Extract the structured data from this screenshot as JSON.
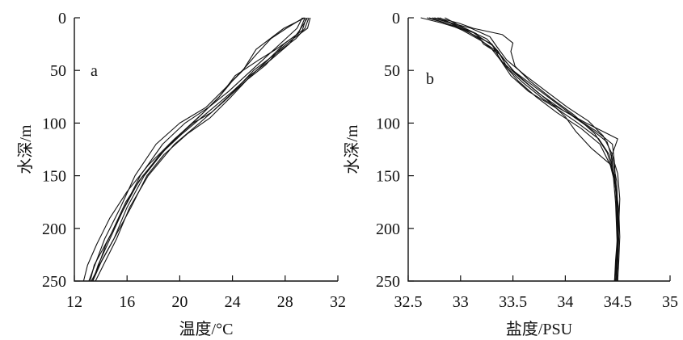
{
  "chart_data": [
    {
      "type": "line",
      "panel_label": "a",
      "xlabel": "温度/°C",
      "ylabel": "水深/m",
      "xlim": [
        12,
        32
      ],
      "ylim": [
        250,
        0
      ],
      "x_ticks": [
        12,
        16,
        20,
        24,
        28,
        32
      ],
      "y_ticks": [
        0,
        50,
        100,
        150,
        200,
        250
      ],
      "x_tick_labels": [
        "12",
        "16",
        "20",
        "24",
        "28",
        "32"
      ],
      "y_tick_labels": [
        "0",
        "50",
        "100",
        "150",
        "200",
        "250"
      ],
      "series": [
        {
          "depth": [
            0,
            10,
            20,
            30,
            45,
            60,
            80,
            100,
            120,
            150,
            180,
            210,
            230,
            250
          ],
          "values": [
            29.9,
            29.7,
            28.6,
            27.6,
            26.5,
            25.0,
            23.3,
            21.5,
            19.6,
            17.6,
            16.2,
            15.2,
            14.4,
            13.6
          ]
        },
        {
          "depth": [
            0,
            10,
            20,
            35,
            50,
            70,
            90,
            100,
            120,
            150,
            180,
            210,
            230,
            250
          ],
          "values": [
            29.8,
            29.5,
            28.8,
            27.2,
            25.6,
            24.1,
            22.4,
            21.0,
            19.2,
            17.3,
            16.0,
            15.0,
            14.1,
            13.4
          ]
        },
        {
          "depth": [
            0,
            12,
            25,
            40,
            55,
            75,
            95,
            110,
            130,
            150,
            180,
            210,
            235,
            250
          ],
          "values": [
            29.6,
            29.3,
            27.9,
            26.7,
            25.4,
            23.9,
            22.3,
            20.6,
            18.8,
            17.5,
            16.3,
            15.0,
            13.9,
            13.3
          ]
        },
        {
          "depth": [
            0,
            10,
            25,
            40,
            55,
            70,
            85,
            100,
            120,
            150,
            180,
            210,
            235,
            250
          ],
          "values": [
            29.3,
            28.9,
            27.6,
            26.3,
            25.0,
            23.7,
            22.2,
            20.4,
            18.7,
            17.0,
            15.8,
            14.7,
            13.8,
            13.4
          ]
        },
        {
          "depth": [
            0,
            10,
            20,
            35,
            48,
            65,
            85,
            100,
            120,
            150,
            180,
            210,
            240,
            250
          ],
          "values": [
            29.4,
            28.1,
            26.9,
            25.8,
            24.9,
            23.6,
            22.0,
            20.0,
            18.2,
            16.6,
            15.5,
            14.3,
            13.4,
            13.1
          ]
        },
        {
          "depth": [
            0,
            15,
            30,
            40,
            55,
            75,
            90,
            105,
            125,
            150,
            175,
            205,
            235,
            250
          ],
          "values": [
            29.5,
            29.0,
            27.3,
            26.0,
            24.2,
            23.0,
            21.8,
            20.5,
            18.9,
            17.2,
            15.9,
            14.8,
            13.5,
            13.2
          ]
        },
        {
          "depth": [
            0,
            10,
            30,
            50,
            60,
            75,
            95,
            115,
            140,
            165,
            190,
            215,
            235,
            250
          ],
          "values": [
            29.5,
            27.9,
            25.8,
            24.8,
            24.0,
            23.0,
            21.4,
            19.6,
            17.6,
            16.0,
            14.7,
            13.7,
            13.0,
            12.7
          ]
        },
        {
          "depth": [
            0,
            12,
            25,
            40,
            55,
            70,
            90,
            110,
            130,
            155,
            185,
            215,
            240,
            250
          ],
          "values": [
            29.7,
            29.1,
            28.3,
            26.9,
            25.3,
            24.0,
            22.1,
            20.2,
            18.5,
            16.9,
            15.6,
            14.4,
            13.7,
            13.3
          ]
        }
      ]
    },
    {
      "type": "line",
      "panel_label": "b",
      "xlabel": "盐度/PSU",
      "ylabel": "水深/m",
      "xlim": [
        32.5,
        35
      ],
      "ylim": [
        250,
        0
      ],
      "x_ticks": [
        32.5,
        33,
        33.5,
        34,
        34.5,
        35
      ],
      "y_ticks": [
        0,
        50,
        100,
        150,
        200,
        250
      ],
      "x_tick_labels": [
        "32.5",
        "33",
        "33.5",
        "34",
        "34.5",
        "35"
      ],
      "y_tick_labels": [
        "0",
        "50",
        "100",
        "150",
        "200",
        "250"
      ],
      "series": [
        {
          "depth": [
            0,
            5,
            10,
            15,
            25,
            40,
            55,
            70,
            85,
            100,
            115,
            130,
            150,
            175,
            200,
            225,
            250
          ],
          "values": [
            32.73,
            32.9,
            33.0,
            33.1,
            33.3,
            33.38,
            33.48,
            33.65,
            33.9,
            34.12,
            34.32,
            34.42,
            34.47,
            34.49,
            34.5,
            34.49,
            34.48
          ]
        },
        {
          "depth": [
            0,
            5,
            12,
            20,
            30,
            45,
            60,
            75,
            90,
            105,
            120,
            140,
            160,
            185,
            210,
            235,
            250
          ],
          "values": [
            32.62,
            32.82,
            33.05,
            33.18,
            33.3,
            33.42,
            33.55,
            33.72,
            33.92,
            34.15,
            34.33,
            34.43,
            34.48,
            34.5,
            34.51,
            34.5,
            34.49
          ]
        },
        {
          "depth": [
            0,
            6,
            12,
            20,
            32,
            48,
            62,
            78,
            92,
            106,
            118,
            135,
            155,
            180,
            205,
            230,
            250
          ],
          "values": [
            32.8,
            32.93,
            33.08,
            33.25,
            33.36,
            33.45,
            33.6,
            33.8,
            34.05,
            34.25,
            34.4,
            34.45,
            34.49,
            34.5,
            34.5,
            34.48,
            34.47
          ]
        },
        {
          "depth": [
            0,
            8,
            15,
            25,
            35,
            50,
            65,
            80,
            95,
            108,
            120,
            138,
            158,
            182,
            208,
            232,
            250
          ],
          "values": [
            32.85,
            33.0,
            33.15,
            33.22,
            33.38,
            33.5,
            33.7,
            33.9,
            34.1,
            34.3,
            34.45,
            34.47,
            34.48,
            34.51,
            34.52,
            34.51,
            34.5
          ]
        },
        {
          "depth": [
            0,
            5,
            12,
            22,
            30,
            42,
            58,
            72,
            88,
            100,
            115,
            132,
            152,
            176,
            202,
            228,
            250
          ],
          "values": [
            32.7,
            32.86,
            33.02,
            33.2,
            33.32,
            33.4,
            33.58,
            33.75,
            33.98,
            34.2,
            34.5,
            34.44,
            34.46,
            34.48,
            34.49,
            34.5,
            34.48
          ]
        },
        {
          "depth": [
            0,
            6,
            10,
            18,
            28,
            40,
            55,
            70,
            85,
            98,
            112,
            128,
            148,
            172,
            198,
            225,
            250
          ],
          "values": [
            32.75,
            32.95,
            33.1,
            33.28,
            33.35,
            33.44,
            33.62,
            33.82,
            34.02,
            34.22,
            34.36,
            34.44,
            34.5,
            34.52,
            34.51,
            34.49,
            34.47
          ]
        },
        {
          "depth": [
            0,
            5,
            10,
            16,
            24,
            32,
            46,
            60,
            76,
            92,
            110,
            128,
            148,
            170,
            195,
            222,
            250
          ],
          "values": [
            32.78,
            32.98,
            33.12,
            33.4,
            33.5,
            33.48,
            33.52,
            33.66,
            33.86,
            34.08,
            34.28,
            34.4,
            34.46,
            34.49,
            34.51,
            34.5,
            34.49
          ]
        },
        {
          "depth": [
            0,
            7,
            14,
            26,
            38,
            52,
            66,
            80,
            94,
            108,
            124,
            140,
            160,
            185,
            210,
            235,
            250
          ],
          "values": [
            32.68,
            32.92,
            33.12,
            33.3,
            33.4,
            33.52,
            33.68,
            33.85,
            34.0,
            34.1,
            34.25,
            34.44,
            34.48,
            34.49,
            34.5,
            34.49,
            34.48
          ]
        }
      ]
    }
  ]
}
